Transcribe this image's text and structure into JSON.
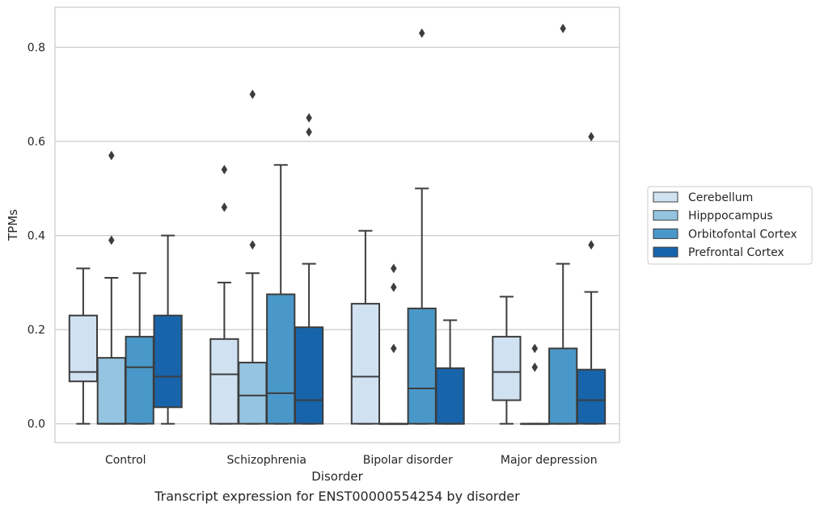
{
  "caption": "Transcript expression for ENST00000554254 by disorder",
  "chart_data": {
    "type": "box",
    "xlabel": "Disorder",
    "ylabel": "TPMs",
    "categories": [
      "Control",
      "Schizophrenia",
      "Bipolar disorder",
      "Major depression"
    ],
    "ylim": [
      -0.04,
      0.885
    ],
    "yticks": [
      0.0,
      0.2,
      0.4,
      0.6,
      0.8
    ],
    "ytick_labels": [
      "0.0",
      "0.2",
      "0.4",
      "0.6",
      "0.8"
    ],
    "grid": "horizontal",
    "legend_position": "right",
    "series": [
      {
        "name": "Cerebellum",
        "color": "#d0e1f2",
        "boxes": [
          {
            "whislo": 0.0,
            "q1": 0.09,
            "med": 0.11,
            "q3": 0.23,
            "whishi": 0.33,
            "fliers": []
          },
          {
            "whislo": 0.0,
            "q1": 0.0,
            "med": 0.105,
            "q3": 0.18,
            "whishi": 0.3,
            "fliers": [
              0.54,
              0.46
            ]
          },
          {
            "whislo": 0.0,
            "q1": 0.0,
            "med": 0.1,
            "q3": 0.255,
            "whishi": 0.41,
            "fliers": []
          },
          {
            "whislo": 0.0,
            "q1": 0.05,
            "med": 0.11,
            "q3": 0.185,
            "whishi": 0.27,
            "fliers": []
          }
        ]
      },
      {
        "name": "Hipppocampus",
        "color": "#94c4df",
        "boxes": [
          {
            "whislo": 0.0,
            "q1": 0.0,
            "med": 0.0,
            "q3": 0.14,
            "whishi": 0.31,
            "fliers": [
              0.57,
              0.39
            ]
          },
          {
            "whislo": 0.0,
            "q1": 0.0,
            "med": 0.06,
            "q3": 0.13,
            "whishi": 0.32,
            "fliers": [
              0.7,
              0.38
            ]
          },
          {
            "whislo": 0.0,
            "q1": 0.0,
            "med": 0.0,
            "q3": 0.0,
            "whishi": 0.0,
            "fliers": [
              0.33,
              0.29,
              0.16
            ]
          },
          {
            "whislo": 0.0,
            "q1": 0.0,
            "med": 0.0,
            "q3": 0.0,
            "whishi": 0.0,
            "fliers": [
              0.16,
              0.12
            ]
          }
        ]
      },
      {
        "name": "Orbitofontal Cortex",
        "color": "#4a98c9",
        "boxes": [
          {
            "whislo": 0.0,
            "q1": 0.0,
            "med": 0.12,
            "q3": 0.185,
            "whishi": 0.32,
            "fliers": []
          },
          {
            "whislo": 0.0,
            "q1": 0.0,
            "med": 0.065,
            "q3": 0.275,
            "whishi": 0.55,
            "fliers": []
          },
          {
            "whislo": 0.0,
            "q1": 0.0,
            "med": 0.075,
            "q3": 0.245,
            "whishi": 0.5,
            "fliers": [
              0.83
            ]
          },
          {
            "whislo": 0.0,
            "q1": 0.0,
            "med": 0.0,
            "q3": 0.16,
            "whishi": 0.34,
            "fliers": [
              0.84
            ]
          }
        ]
      },
      {
        "name": "Prefrontal Cortex",
        "color": "#1764ab",
        "boxes": [
          {
            "whislo": 0.0,
            "q1": 0.035,
            "med": 0.1,
            "q3": 0.23,
            "whishi": 0.4,
            "fliers": []
          },
          {
            "whislo": 0.0,
            "q1": 0.0,
            "med": 0.05,
            "q3": 0.205,
            "whishi": 0.34,
            "fliers": [
              0.65,
              0.62
            ]
          },
          {
            "whislo": 0.0,
            "q1": 0.0,
            "med": 0.0,
            "q3": 0.118,
            "whishi": 0.22,
            "fliers": []
          },
          {
            "whislo": 0.0,
            "q1": 0.0,
            "med": 0.05,
            "q3": 0.115,
            "whishi": 0.28,
            "fliers": [
              0.61,
              0.38
            ]
          }
        ]
      }
    ]
  }
}
